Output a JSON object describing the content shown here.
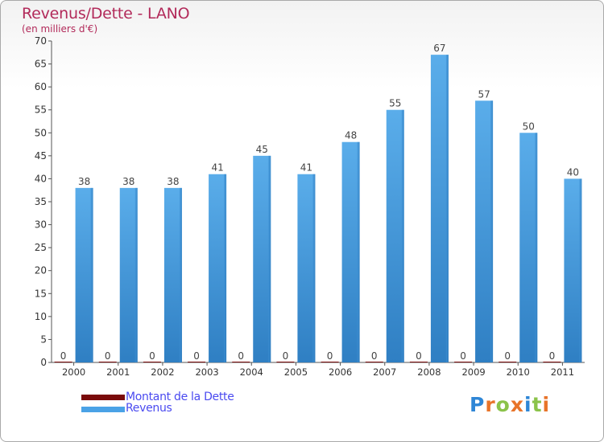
{
  "title": "Revenus/Dette - LANO",
  "subtitle": "(en milliers d'€)",
  "logo_text": "Proxiti",
  "colors": {
    "title": "#b22a5a",
    "debt": "#7a0a0a",
    "revenue": "#4aa2e6",
    "revenue_dark": "#2e7fc2",
    "legend_text": "#4a4af0"
  },
  "chart_data": {
    "type": "bar",
    "categories": [
      "2000",
      "2001",
      "2002",
      "2003",
      "2004",
      "2005",
      "2006",
      "2007",
      "2008",
      "2009",
      "2010",
      "2011"
    ],
    "series": [
      {
        "name": "Montant de la Dette",
        "values": [
          0,
          0,
          0,
          0,
          0,
          0,
          0,
          0,
          0,
          0,
          0,
          0
        ]
      },
      {
        "name": "Revenus",
        "values": [
          38,
          38,
          38,
          41,
          45,
          41,
          48,
          55,
          67,
          57,
          50,
          40
        ]
      }
    ],
    "ylim": [
      0,
      70
    ],
    "yticks": [
      0,
      5,
      10,
      15,
      20,
      25,
      30,
      35,
      40,
      45,
      50,
      55,
      60,
      65,
      70
    ],
    "grid": false,
    "legend": "bottom-left"
  }
}
